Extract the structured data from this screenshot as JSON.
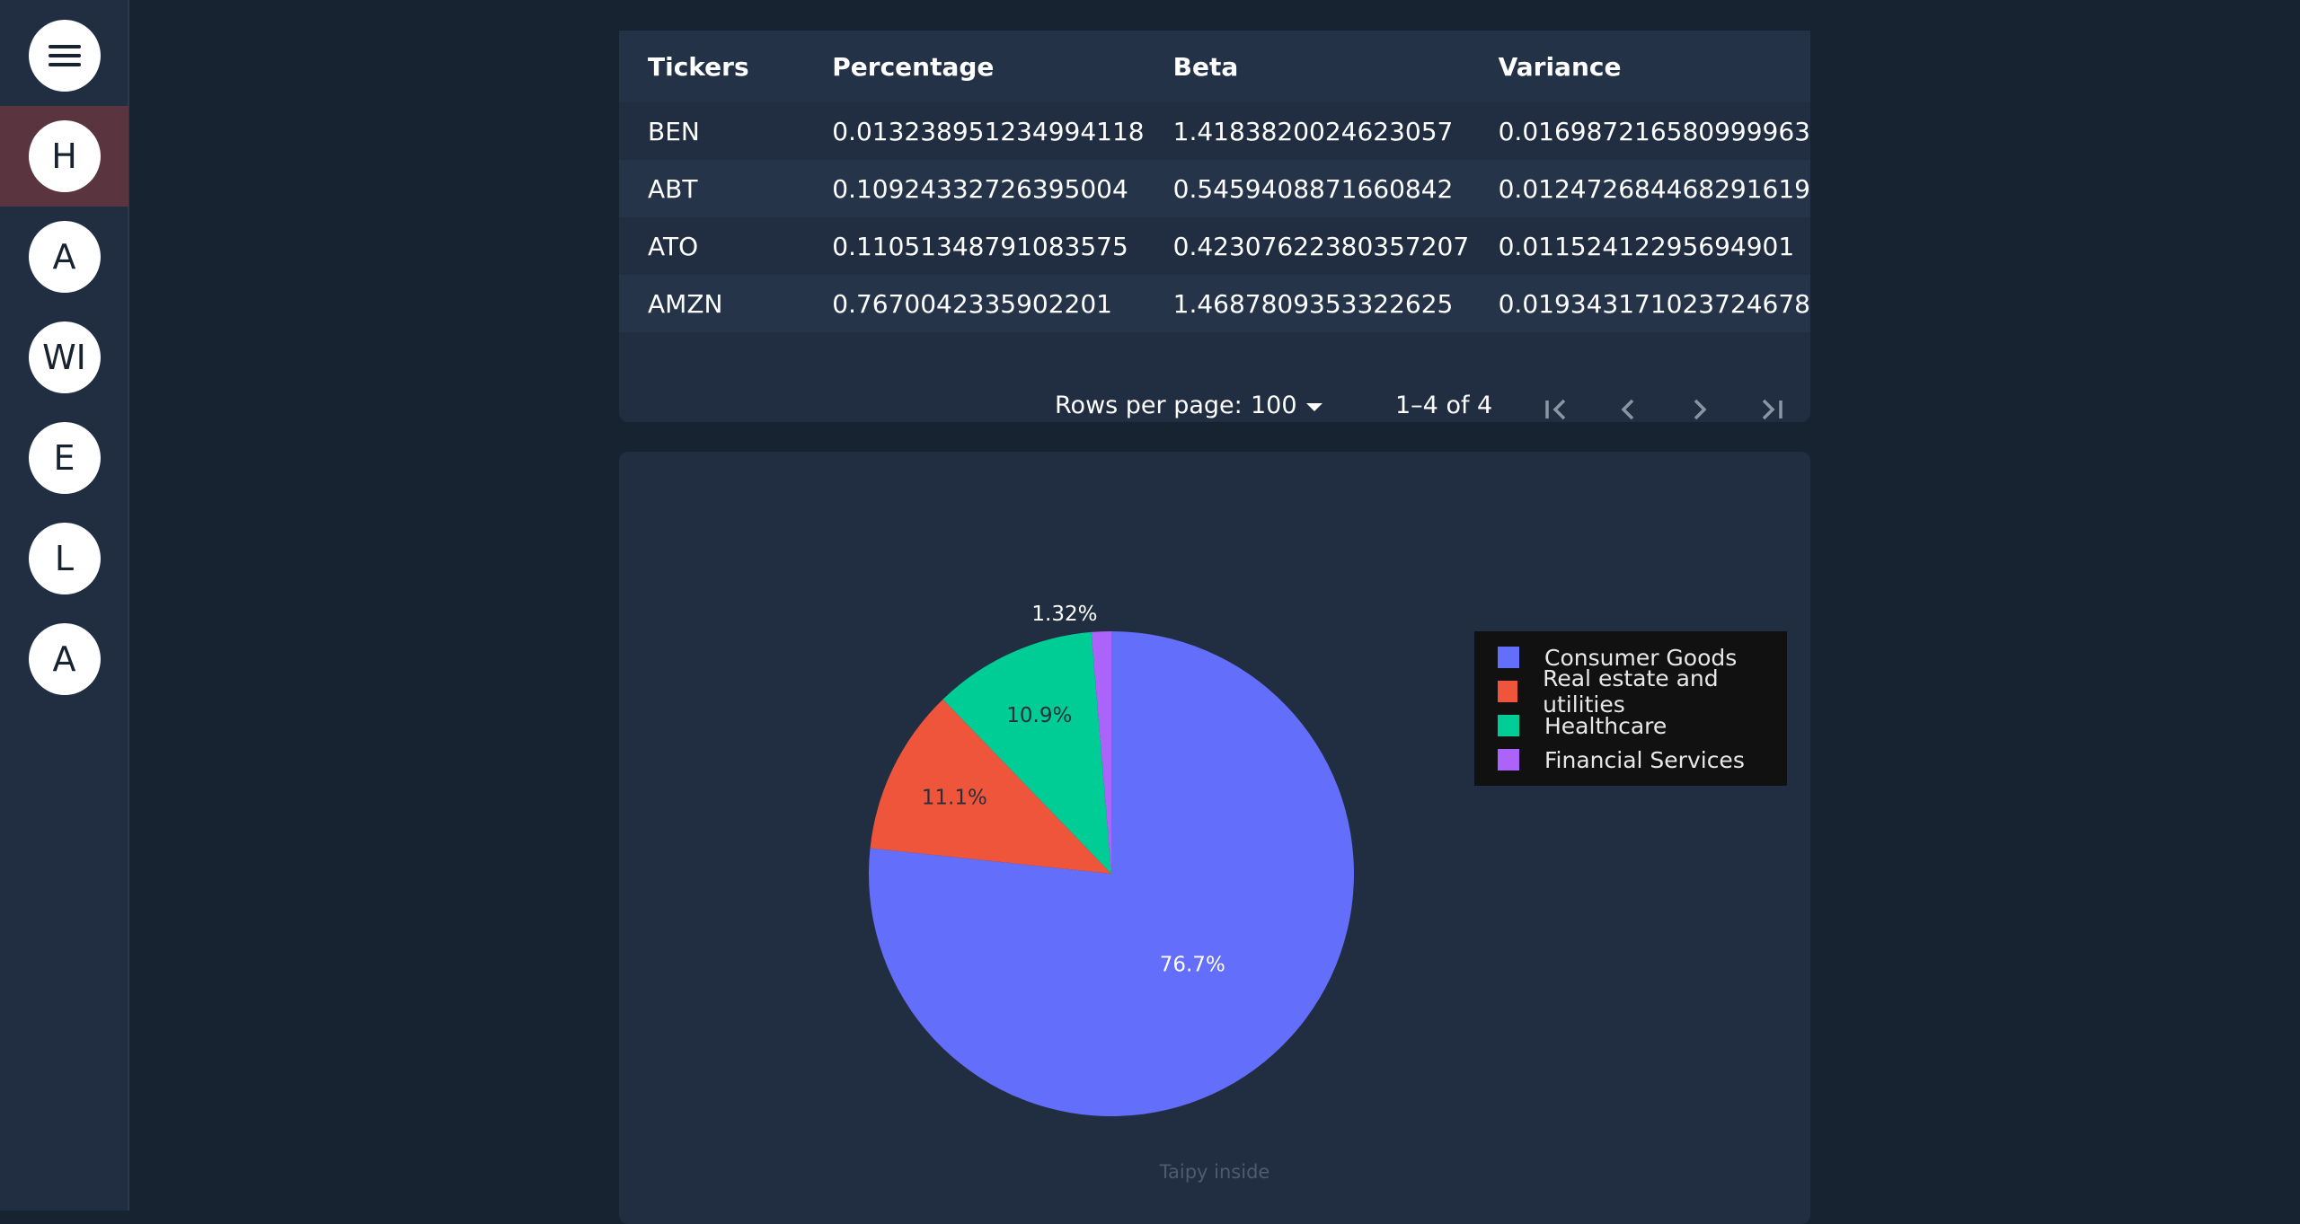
{
  "sidebar": {
    "menu_icon": "hamburger-icon",
    "items": [
      {
        "label": "H",
        "active": true
      },
      {
        "label": "A",
        "active": false
      },
      {
        "label": "WI",
        "active": false
      },
      {
        "label": "E",
        "active": false
      },
      {
        "label": "L",
        "active": false
      },
      {
        "label": "A",
        "active": false
      }
    ]
  },
  "table": {
    "headers": [
      "Tickers",
      "Percentage",
      "Beta",
      "Variance"
    ],
    "rows": [
      [
        "BEN",
        "0.013238951234994118",
        "1.4183820024623057",
        "0.016987216580999963"
      ],
      [
        "ABT",
        "0.10924332726395004",
        "0.5459408871660842",
        "0.012472684468291619"
      ],
      [
        "ATO",
        "0.11051348791083575",
        "0.42307622380357207",
        "0.01152412295694901"
      ],
      [
        "AMZN",
        "0.7670042335902201",
        "1.4687809353322625",
        "0.019343171023724678"
      ]
    ]
  },
  "pagination": {
    "rows_per_page_label": "Rows per page:",
    "rows_per_page_value": "100",
    "range_label": "1–4 of 4",
    "first_icon": "first-page-icon",
    "prev_icon": "chevron-left-icon",
    "next_icon": "chevron-right-icon",
    "last_icon": "last-page-icon"
  },
  "chart_data": {
    "type": "pie",
    "slices": [
      {
        "label": "Consumer Goods",
        "value": 76.7,
        "text": "76.7%",
        "color": "#636efa"
      },
      {
        "label": "Real estate and utilities",
        "value": 11.1,
        "text": "11.1%",
        "color": "#ef553b"
      },
      {
        "label": "Healthcare",
        "value": 10.9,
        "text": "10.9%",
        "color": "#00cc96"
      },
      {
        "label": "Financial Services",
        "value": 1.32,
        "text": "1.32%",
        "color": "#ab63fa"
      }
    ],
    "legend_placement": "right"
  },
  "footer": {
    "text": "Taipy inside"
  }
}
